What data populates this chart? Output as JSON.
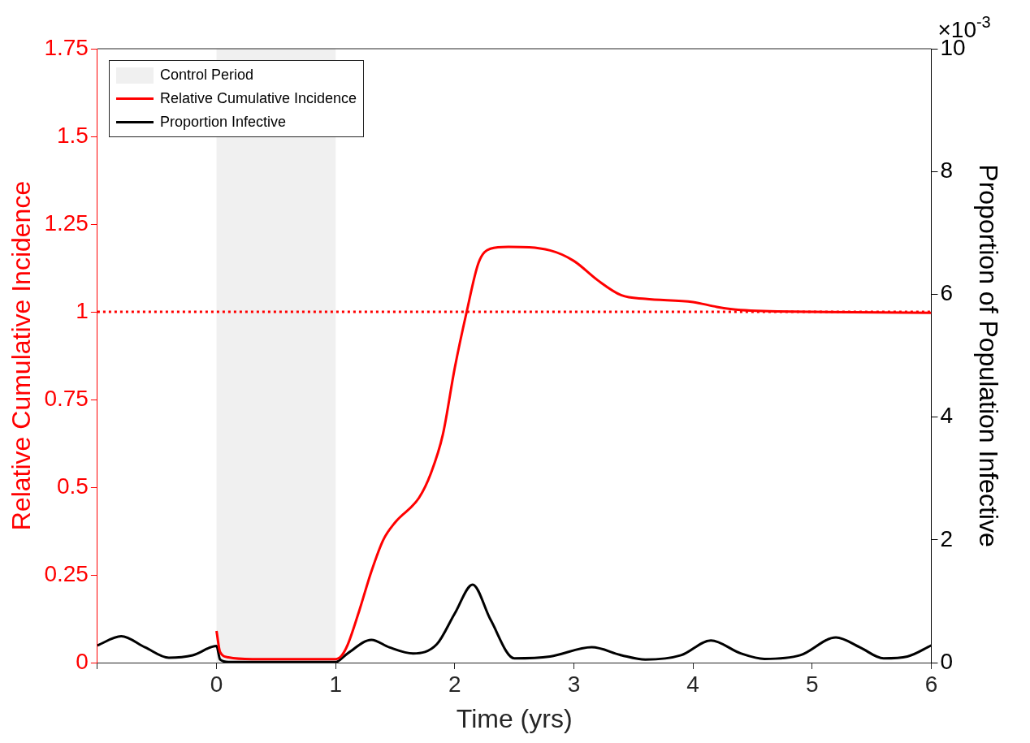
{
  "chart_data": {
    "type": "line",
    "xlabel": "Time (yrs)",
    "ylabel": "Relative Cumulative Incidence",
    "y2label": "Proportion of Population Infective",
    "xlim": [
      -1,
      6
    ],
    "xticks": [
      {
        "value": -1,
        "label": null
      },
      0,
      1,
      2,
      3,
      4,
      5,
      6
    ],
    "ylim": [
      0,
      1.75
    ],
    "yticks": [
      0,
      0.25,
      0.5,
      0.75,
      1,
      1.25,
      1.5,
      1.75
    ],
    "y2lim": [
      0,
      10
    ],
    "y2ticks": [
      0,
      2,
      4,
      6,
      8,
      10
    ],
    "grid": false,
    "legend": "top left",
    "line_style": "solid",
    "marker": "none",
    "bands": [
      {
        "axis": "x",
        "from": 0,
        "to": 1,
        "label": "Control Period",
        "color": "#f0f0f0"
      }
    ],
    "ref_lines": [
      {
        "axis": "y",
        "value": 1,
        "color": "#ff0000",
        "line_style": "dotted"
      }
    ],
    "annotations": [
      "×10$^{-3}$"
    ],
    "series": [
      {
        "name": "Relative Cumulative Incidence",
        "color": "#ff0000",
        "x": [
          0,
          0.03,
          0.1,
          0.3,
          0.6,
          1,
          1.05,
          1.1,
          1.2,
          1.3,
          1.4,
          1.5,
          1.7,
          1.8,
          1.9,
          2,
          2.1,
          2.2,
          2.3,
          2.45,
          2.8,
          3,
          3.2,
          3.4,
          3.6,
          4,
          4.2,
          4.4,
          5,
          6
        ],
        "values": [
          0.09,
          0.03,
          0.015,
          0.01,
          0.01,
          0.01,
          0.02,
          0.05,
          0.15,
          0.26,
          0.35,
          0.4,
          0.47,
          0.54,
          0.65,
          0.84,
          1,
          1.14,
          1.18,
          1.185,
          1.175,
          1.145,
          1.09,
          1.047,
          1.037,
          1.028,
          1.014,
          1.005,
          1,
          0.997
        ]
      },
      {
        "name": "Proportion Infective",
        "color": "#000000",
        "axis": "y2",
        "x": [
          -1,
          -0.8,
          -0.6,
          -0.4,
          -0.2,
          0,
          0.03,
          0.1,
          0.5,
          1,
          1.1,
          1.3,
          1.45,
          1.65,
          1.85,
          2,
          2.15,
          2.3,
          2.5,
          2.8,
          3.15,
          3.4,
          3.6,
          3.9,
          4.15,
          4.4,
          4.6,
          4.9,
          5.2,
          5.4,
          5.6,
          5.8,
          6
        ],
        "values": [
          0.28,
          0.43,
          0.25,
          0.08,
          0.12,
          0.27,
          0.05,
          0.01,
          0.01,
          0.01,
          0.15,
          0.37,
          0.25,
          0.15,
          0.3,
          0.8,
          1.27,
          0.7,
          0.07,
          0.1,
          0.25,
          0.12,
          0.05,
          0.12,
          0.36,
          0.15,
          0.06,
          0.12,
          0.41,
          0.25,
          0.07,
          0.1,
          0.28
        ]
      }
    ]
  }
}
